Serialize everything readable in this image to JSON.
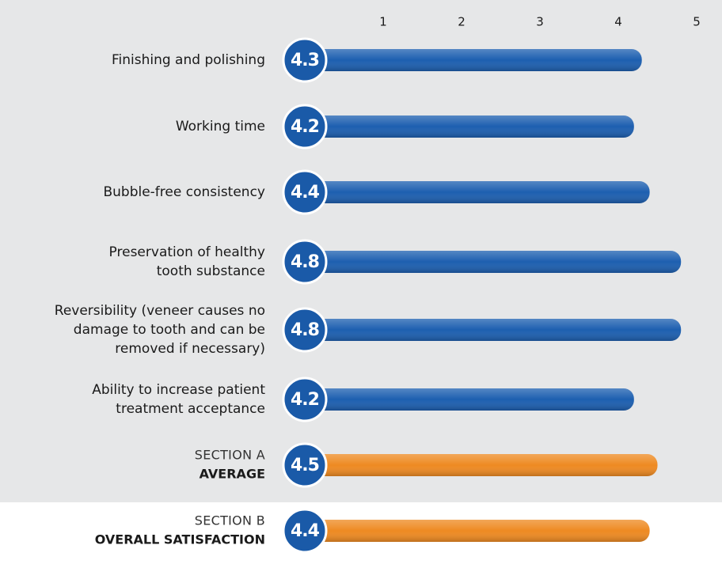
{
  "chart_data": {
    "type": "bar",
    "orientation": "horizontal",
    "categories": [
      [
        "Finishing and polishing"
      ],
      [
        "Working time"
      ],
      [
        "Bubble-free consistency"
      ],
      [
        "Preservation of healthy",
        "tooth substance"
      ],
      [
        "Reversibility (veneer causes no",
        "damage to tooth and can be",
        "removed if necessary)"
      ],
      [
        "Ability to increase patient",
        "treatment acceptance"
      ],
      [
        "SECTION A",
        "AVERAGE"
      ],
      [
        "SECTION B",
        "OVERALL SATISFACTION"
      ]
    ],
    "values": [
      4.3,
      4.2,
      4.4,
      4.8,
      4.8,
      4.2,
      4.5,
      4.4
    ],
    "colors": [
      "#1d5fb0",
      "#1d5fb0",
      "#1d5fb0",
      "#1d5fb0",
      "#1d5fb0",
      "#1d5fb0",
      "#ee8a22",
      "#ee8a22"
    ],
    "xlim": [
      0,
      5
    ],
    "xticks": [
      1,
      2,
      3,
      4,
      5
    ],
    "grid": false
  }
}
